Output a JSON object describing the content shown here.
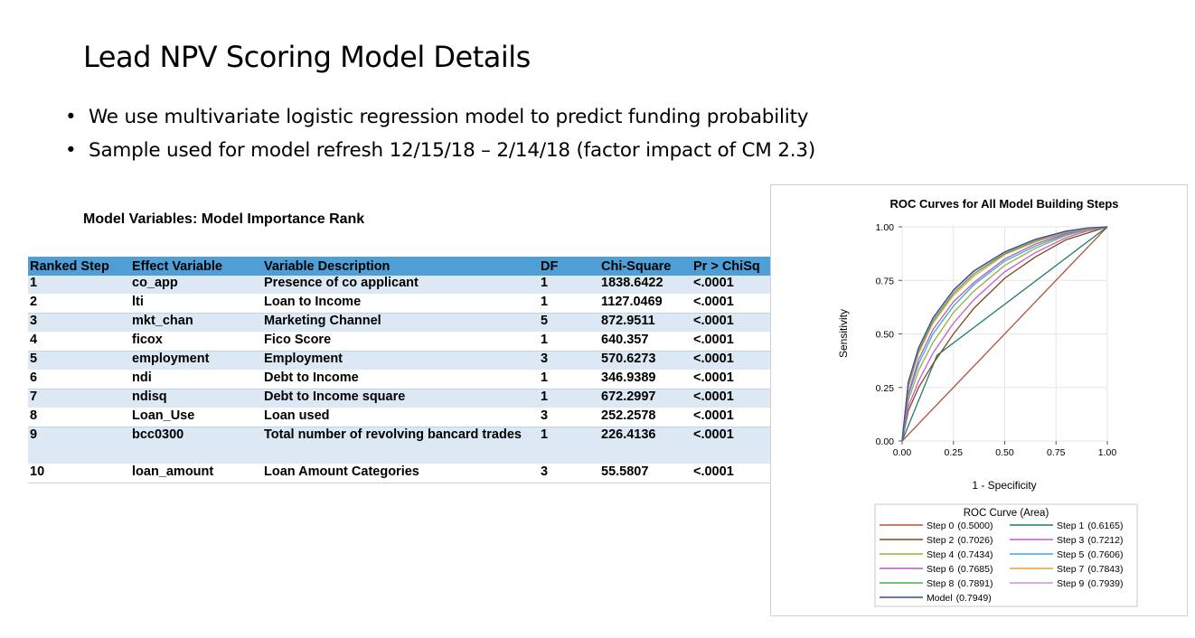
{
  "slide": {
    "title": "Lead NPV Scoring Model Details",
    "bullets": [
      "We use multivariate logistic regression model to predict funding probability",
      "Sample used for model refresh 12/15/18 – 2/14/18 (factor impact of CM 2.3)"
    ]
  },
  "table": {
    "title": "Model Variables: Model Importance Rank",
    "header_color": "#4f9fd6",
    "stripe_color": "#dce9f4",
    "columns": [
      "Ranked Step",
      "Effect Variable",
      "Variable Description",
      "DF",
      "Chi-Square",
      "Pr > ChiSq"
    ],
    "rows": [
      [
        "1",
        "co_app",
        "Presence of co applicant",
        "1",
        "1838.6422",
        "<.0001"
      ],
      [
        "2",
        "lti",
        "Loan to Income",
        "1",
        "1127.0469",
        "<.0001"
      ],
      [
        "3",
        "mkt_chan",
        "Marketing Channel",
        "5",
        "872.9511",
        "<.0001"
      ],
      [
        "4",
        "ficox",
        "Fico Score",
        "1",
        "640.357",
        "<.0001"
      ],
      [
        "5",
        "employment",
        "Employment",
        "3",
        "570.6273",
        "<.0001"
      ],
      [
        "6",
        "ndi",
        "Debt to Income",
        "1",
        "346.9389",
        "<.0001"
      ],
      [
        "7",
        "ndisq",
        "Debt to Income square",
        "1",
        "672.2997",
        "<.0001"
      ],
      [
        "8",
        "Loan_Use",
        "Loan used",
        "3",
        "252.2578",
        "<.0001"
      ],
      [
        "9",
        "bcc0300",
        "Total number of revolving bancard trades",
        "1",
        "226.4136",
        "<.0001"
      ],
      [
        "10",
        "loan_amount",
        "Loan Amount Categories",
        "3",
        "55.5807",
        "<.0001"
      ]
    ]
  },
  "chart_data": {
    "type": "line",
    "title": "ROC Curves for All Model Building Steps",
    "xlabel": "1 - Specificity",
    "ylabel": "Sensitivity",
    "xlim": [
      0,
      1
    ],
    "ylim": [
      0,
      1
    ],
    "xticks": [
      "0.00",
      "0.25",
      "0.50",
      "0.75",
      "1.00"
    ],
    "yticks": [
      "0.00",
      "0.25",
      "0.50",
      "0.75",
      "1.00"
    ],
    "grid": true,
    "legend_title": "ROC Curve (Area)",
    "legend_position": "bottom",
    "series": [
      {
        "name": "Step 0",
        "label": "(0.5000)",
        "auc": 0.5,
        "color": "#b5543a",
        "points": [
          [
            0,
            0
          ],
          [
            1,
            1
          ]
        ]
      },
      {
        "name": "Step 1",
        "label": "(0.6165)",
        "auc": 0.6165,
        "color": "#1f7a6e",
        "points": [
          [
            0,
            0
          ],
          [
            0.17,
            0.4
          ],
          [
            1,
            1
          ]
        ]
      },
      {
        "name": "Step 2",
        "label": "(0.7026)",
        "auc": 0.7026,
        "color": "#7a4a1e",
        "points": [
          [
            0,
            0
          ],
          [
            0.03,
            0.14
          ],
          [
            0.08,
            0.25
          ],
          [
            0.15,
            0.36
          ],
          [
            0.25,
            0.5
          ],
          [
            0.35,
            0.62
          ],
          [
            0.5,
            0.76
          ],
          [
            0.65,
            0.86
          ],
          [
            0.8,
            0.94
          ],
          [
            0.9,
            0.97
          ],
          [
            1,
            1
          ]
        ]
      },
      {
        "name": "Step 3",
        "label": "(0.7212)",
        "auc": 0.7212,
        "color": "#c35cd6",
        "points": [
          [
            0,
            0
          ],
          [
            0.03,
            0.16
          ],
          [
            0.08,
            0.28
          ],
          [
            0.15,
            0.41
          ],
          [
            0.25,
            0.55
          ],
          [
            0.35,
            0.66
          ],
          [
            0.5,
            0.79
          ],
          [
            0.65,
            0.88
          ],
          [
            0.8,
            0.95
          ],
          [
            0.9,
            0.98
          ],
          [
            1,
            1
          ]
        ]
      },
      {
        "name": "Step 4",
        "label": "(0.7434)",
        "auc": 0.7434,
        "color": "#9aae3e",
        "points": [
          [
            0,
            0
          ],
          [
            0.03,
            0.19
          ],
          [
            0.08,
            0.33
          ],
          [
            0.15,
            0.46
          ],
          [
            0.25,
            0.6
          ],
          [
            0.35,
            0.7
          ],
          [
            0.5,
            0.82
          ],
          [
            0.65,
            0.9
          ],
          [
            0.8,
            0.96
          ],
          [
            0.9,
            0.985
          ],
          [
            1,
            1
          ]
        ]
      },
      {
        "name": "Step 5",
        "label": "(0.7606)",
        "auc": 0.7606,
        "color": "#3aa8d8",
        "points": [
          [
            0,
            0
          ],
          [
            0.03,
            0.21
          ],
          [
            0.08,
            0.36
          ],
          [
            0.15,
            0.5
          ],
          [
            0.25,
            0.63
          ],
          [
            0.35,
            0.73
          ],
          [
            0.5,
            0.84
          ],
          [
            0.65,
            0.91
          ],
          [
            0.8,
            0.965
          ],
          [
            0.9,
            0.988
          ],
          [
            1,
            1
          ]
        ]
      },
      {
        "name": "Step 6",
        "label": "(0.7685)",
        "auc": 0.7685,
        "color": "#b25ab8",
        "points": [
          [
            0,
            0
          ],
          [
            0.03,
            0.22
          ],
          [
            0.08,
            0.38
          ],
          [
            0.15,
            0.52
          ],
          [
            0.25,
            0.65
          ],
          [
            0.35,
            0.74
          ],
          [
            0.5,
            0.85
          ],
          [
            0.65,
            0.92
          ],
          [
            0.8,
            0.97
          ],
          [
            0.9,
            0.99
          ],
          [
            1,
            1
          ]
        ]
      },
      {
        "name": "Step 7",
        "label": "(0.7843)",
        "auc": 0.7843,
        "color": "#e0a43a",
        "points": [
          [
            0,
            0
          ],
          [
            0.03,
            0.25
          ],
          [
            0.08,
            0.41
          ],
          [
            0.15,
            0.55
          ],
          [
            0.25,
            0.68
          ],
          [
            0.35,
            0.77
          ],
          [
            0.5,
            0.87
          ],
          [
            0.65,
            0.93
          ],
          [
            0.8,
            0.975
          ],
          [
            0.9,
            0.99
          ],
          [
            1,
            1
          ]
        ]
      },
      {
        "name": "Step 8",
        "label": "(0.7891)",
        "auc": 0.7891,
        "color": "#4caa4c",
        "points": [
          [
            0,
            0
          ],
          [
            0.03,
            0.26
          ],
          [
            0.08,
            0.42
          ],
          [
            0.15,
            0.56
          ],
          [
            0.25,
            0.69
          ],
          [
            0.35,
            0.78
          ],
          [
            0.5,
            0.875
          ],
          [
            0.65,
            0.935
          ],
          [
            0.8,
            0.977
          ],
          [
            0.9,
            0.992
          ],
          [
            1,
            1
          ]
        ]
      },
      {
        "name": "Step 9",
        "label": "(0.7939)",
        "auc": 0.7939,
        "color": "#c79ad6",
        "points": [
          [
            0,
            0
          ],
          [
            0.03,
            0.27
          ],
          [
            0.08,
            0.43
          ],
          [
            0.15,
            0.57
          ],
          [
            0.25,
            0.7
          ],
          [
            0.35,
            0.79
          ],
          [
            0.5,
            0.88
          ],
          [
            0.65,
            0.94
          ],
          [
            0.8,
            0.978
          ],
          [
            0.9,
            0.993
          ],
          [
            1,
            1
          ]
        ]
      },
      {
        "name": "Model",
        "label": "(0.7949)",
        "auc": 0.7949,
        "color": "#3c4a8c",
        "points": [
          [
            0,
            0
          ],
          [
            0.03,
            0.275
          ],
          [
            0.08,
            0.435
          ],
          [
            0.15,
            0.575
          ],
          [
            0.25,
            0.705
          ],
          [
            0.35,
            0.795
          ],
          [
            0.5,
            0.883
          ],
          [
            0.65,
            0.942
          ],
          [
            0.8,
            0.98
          ],
          [
            0.9,
            0.994
          ],
          [
            1,
            1
          ]
        ]
      }
    ]
  }
}
